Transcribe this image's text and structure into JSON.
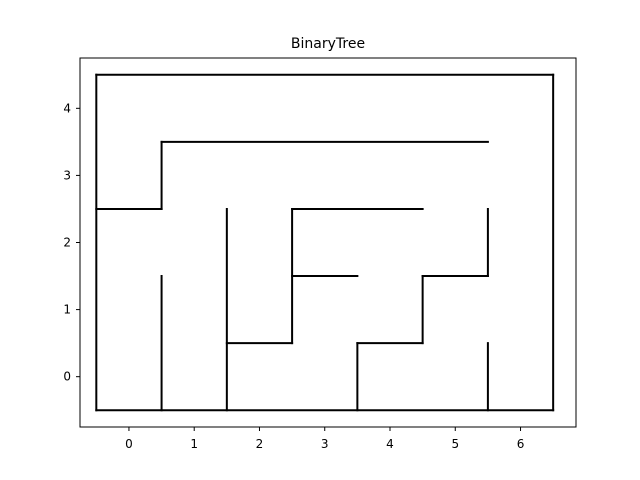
{
  "figure": {
    "title": "BinaryTree"
  },
  "chart_data": {
    "type": "line",
    "title": "BinaryTree",
    "xlabel": "",
    "ylabel": "",
    "xlim": [
      -0.75,
      6.85
    ],
    "ylim": [
      -0.75,
      4.75
    ],
    "x_ticks": [
      0,
      1,
      2,
      3,
      4,
      5,
      6
    ],
    "y_ticks": [
      0,
      1,
      2,
      3,
      4
    ],
    "x_tick_labels": [
      "0",
      "1",
      "2",
      "3",
      "4",
      "5",
      "6"
    ],
    "y_tick_labels": [
      "0",
      "1",
      "2",
      "3",
      "4"
    ],
    "grid": false,
    "line_color": "#000000",
    "segments": [
      [
        [
          -0.5,
          -0.5
        ],
        [
          6.5,
          -0.5
        ]
      ],
      [
        [
          6.5,
          -0.5
        ],
        [
          6.5,
          4.5
        ]
      ],
      [
        [
          6.5,
          4.5
        ],
        [
          -0.5,
          4.5
        ]
      ],
      [
        [
          -0.5,
          4.5
        ],
        [
          -0.5,
          -0.5
        ]
      ],
      [
        [
          -0.5,
          2.5
        ],
        [
          0.5,
          2.5
        ]
      ],
      [
        [
          0.5,
          2.5
        ],
        [
          0.5,
          3.5
        ]
      ],
      [
        [
          0.5,
          3.5
        ],
        [
          5.5,
          3.5
        ]
      ],
      [
        [
          0.5,
          -0.5
        ],
        [
          0.5,
          1.5
        ]
      ],
      [
        [
          1.5,
          -0.5
        ],
        [
          1.5,
          2.5
        ]
      ],
      [
        [
          1.5,
          0.5
        ],
        [
          2.5,
          0.5
        ]
      ],
      [
        [
          2.5,
          0.5
        ],
        [
          2.5,
          2.5
        ]
      ],
      [
        [
          2.5,
          2.5
        ],
        [
          4.5,
          2.5
        ]
      ],
      [
        [
          2.5,
          1.5
        ],
        [
          3.5,
          1.5
        ]
      ],
      [
        [
          3.5,
          -0.5
        ],
        [
          3.5,
          0.5
        ]
      ],
      [
        [
          3.5,
          0.5
        ],
        [
          4.5,
          0.5
        ]
      ],
      [
        [
          4.5,
          0.5
        ],
        [
          4.5,
          1.5
        ]
      ],
      [
        [
          4.5,
          1.5
        ],
        [
          5.5,
          1.5
        ]
      ],
      [
        [
          5.5,
          1.5
        ],
        [
          5.5,
          2.5
        ]
      ],
      [
        [
          5.5,
          -0.5
        ],
        [
          5.5,
          0.5
        ]
      ]
    ]
  }
}
